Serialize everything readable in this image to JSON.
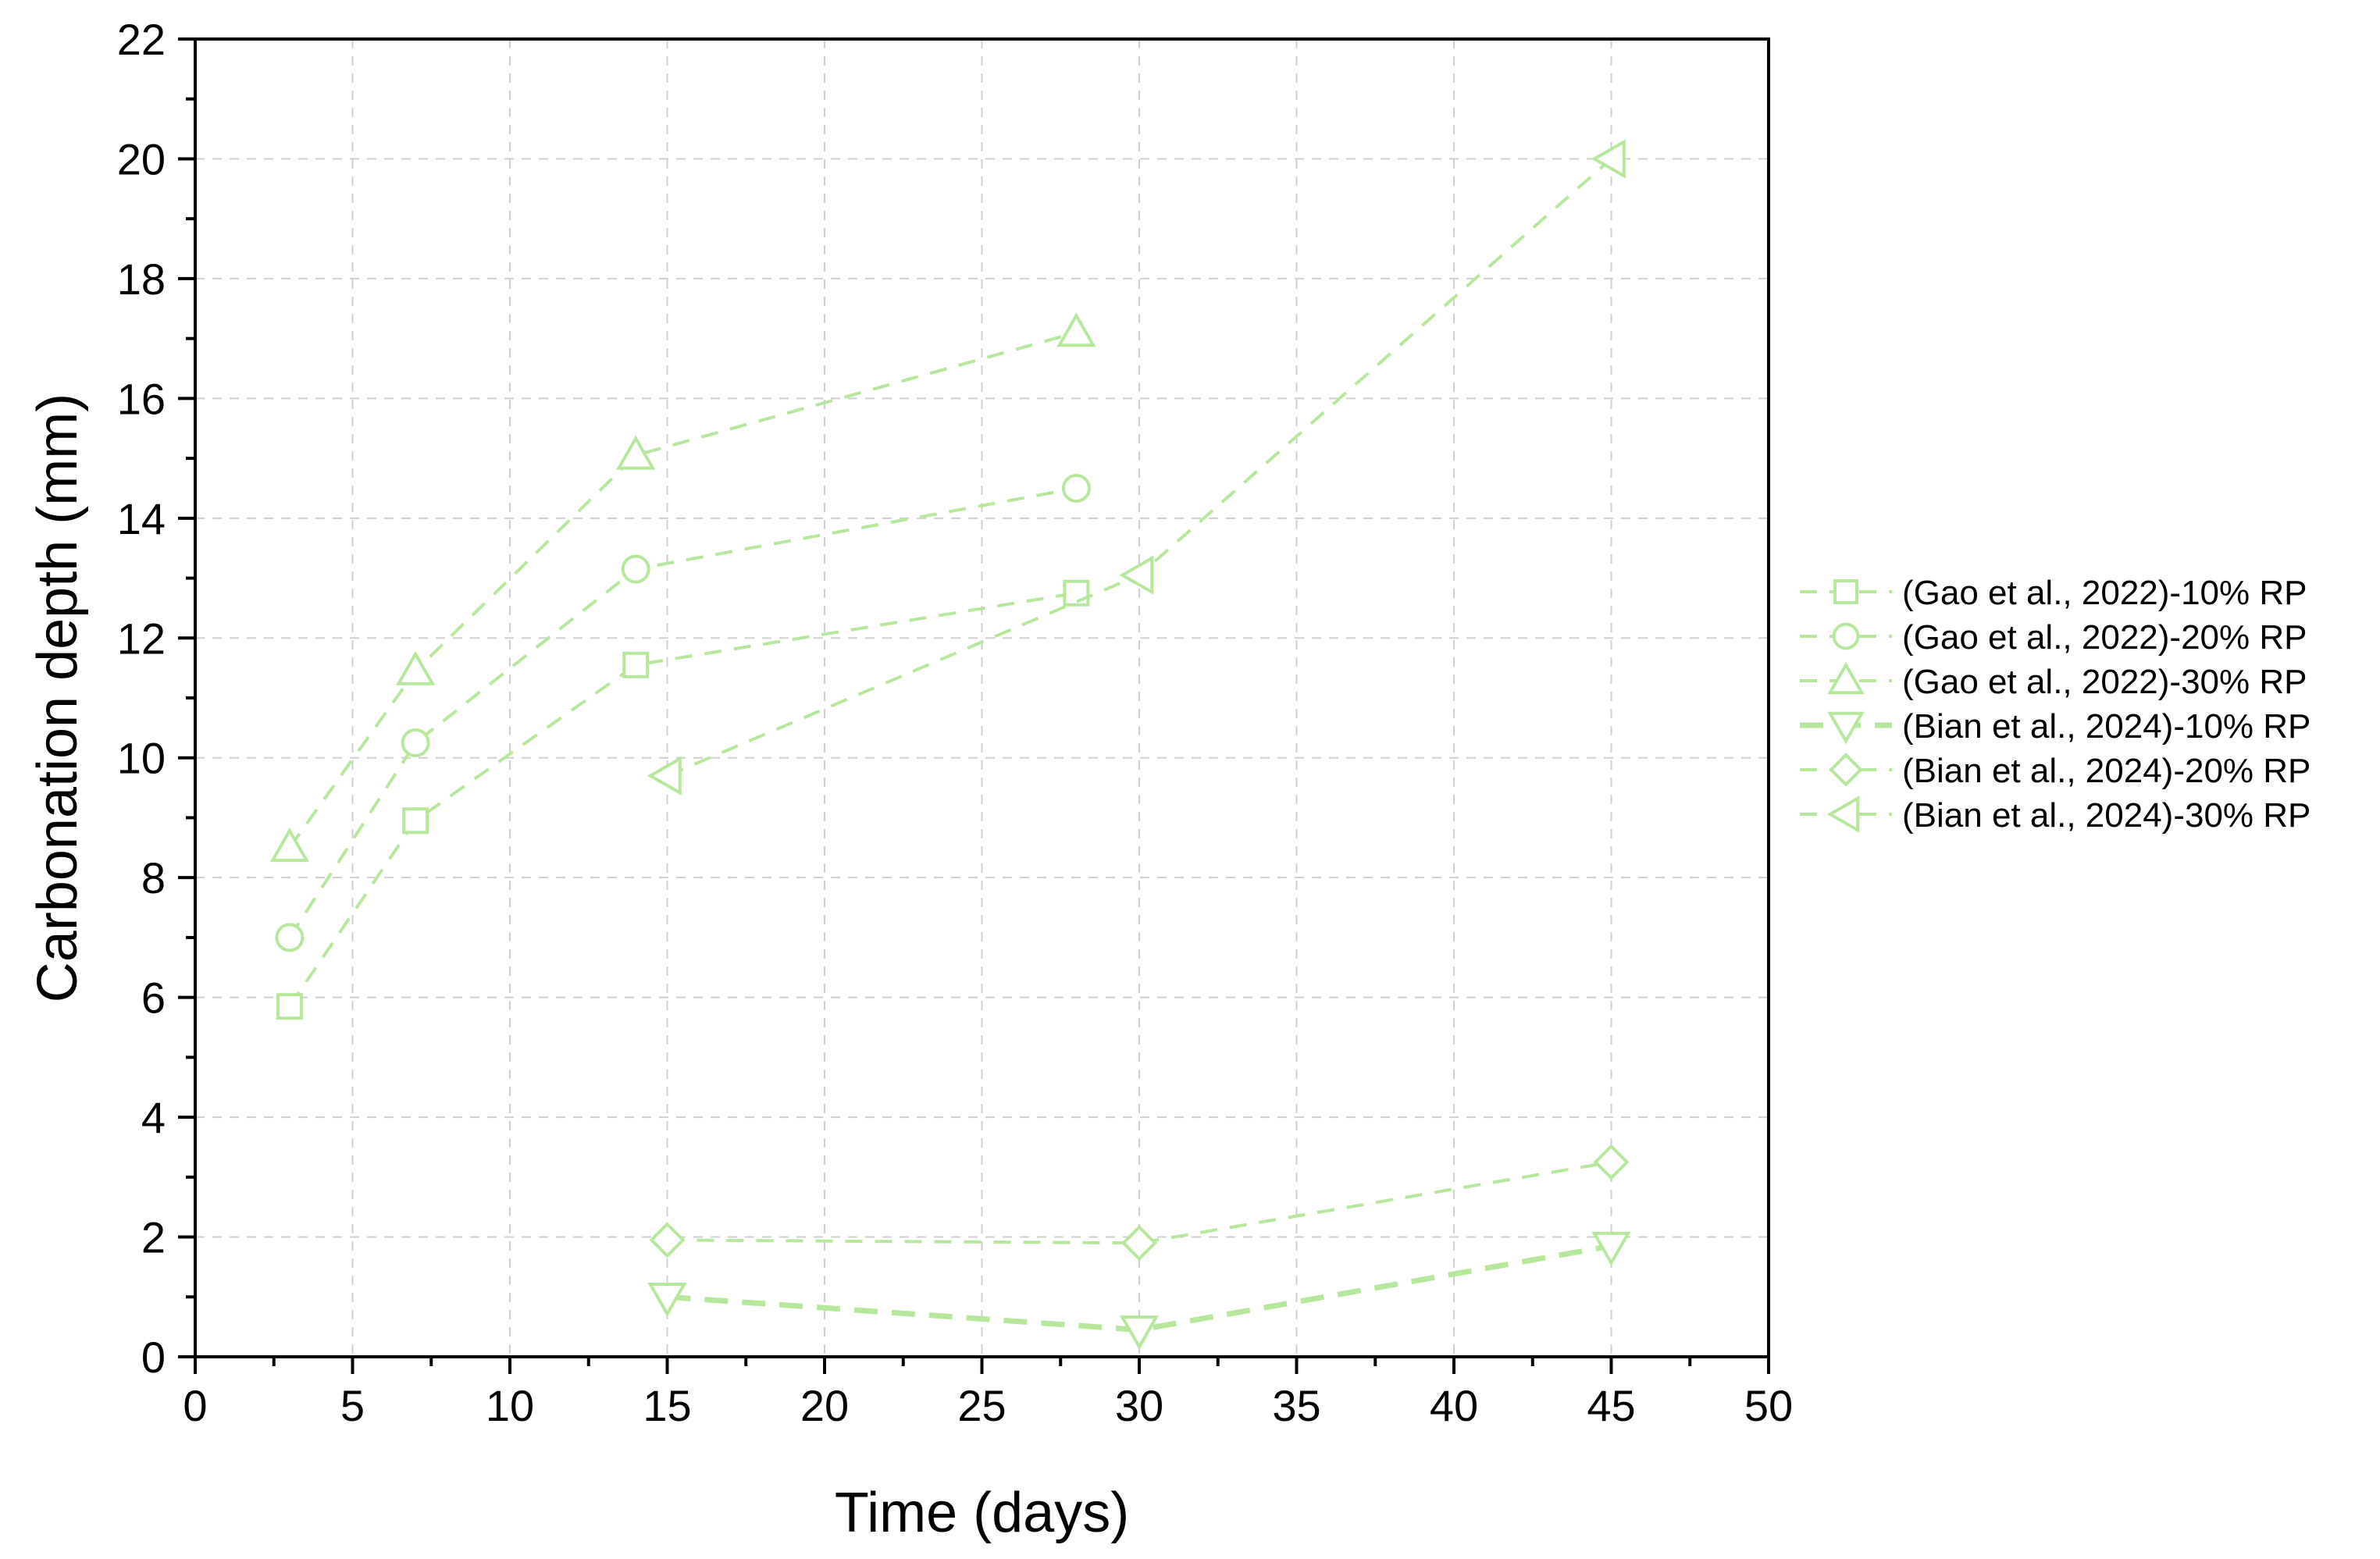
{
  "chart_data": {
    "type": "line",
    "title": "",
    "xlabel": "Time (days)",
    "ylabel": "Carbonation depth (mm)",
    "xlim": [
      0,
      50
    ],
    "ylim": [
      0,
      22
    ],
    "x_ticks": [
      "0",
      "5",
      "10",
      "15",
      "20",
      "25",
      "30",
      "35",
      "40",
      "45",
      "50"
    ],
    "y_ticks": [
      "0",
      "2",
      "4",
      "6",
      "8",
      "10",
      "12",
      "14",
      "16",
      "18",
      "20",
      "22"
    ],
    "x_tick_values": [
      0,
      5,
      10,
      15,
      20,
      25,
      30,
      35,
      40,
      45,
      50
    ],
    "y_tick_values": [
      0,
      2,
      4,
      6,
      8,
      10,
      12,
      14,
      16,
      18,
      20,
      22
    ],
    "grid": true,
    "legend_position": "right",
    "series_color": "#b5e89a",
    "series": [
      {
        "name": "(Gao et al., 2022)-10% RP",
        "marker": "square",
        "line": "dashed",
        "x": [
          3,
          7,
          14,
          28
        ],
        "y": [
          5.85,
          8.95,
          11.55,
          12.75
        ]
      },
      {
        "name": "(Gao et al., 2022)-20% RP",
        "marker": "circle",
        "line": "dashed",
        "x": [
          3,
          7,
          14,
          28
        ],
        "y": [
          7.0,
          10.25,
          13.15,
          14.5
        ]
      },
      {
        "name": "(Gao et al., 2022)-30% RP",
        "marker": "triangle-up",
        "line": "dashed",
        "x": [
          3,
          7,
          14,
          28
        ],
        "y": [
          8.5,
          11.45,
          15.05,
          17.1
        ]
      },
      {
        "name": "(Bian et al., 2024)-10% RP",
        "marker": "triangle-down",
        "line": "dashed-bold",
        "x": [
          15,
          30,
          45
        ],
        "y": [
          1.0,
          0.45,
          1.85
        ]
      },
      {
        "name": "(Bian et al., 2024)-20% RP",
        "marker": "diamond",
        "line": "dashed",
        "x": [
          15,
          30,
          45
        ],
        "y": [
          1.95,
          1.9,
          3.25
        ]
      },
      {
        "name": "(Bian et al., 2024)-30% RP",
        "marker": "triangle-left",
        "line": "dashed",
        "x": [
          15,
          30,
          45
        ],
        "y": [
          9.7,
          13.05,
          20.0
        ]
      }
    ]
  }
}
